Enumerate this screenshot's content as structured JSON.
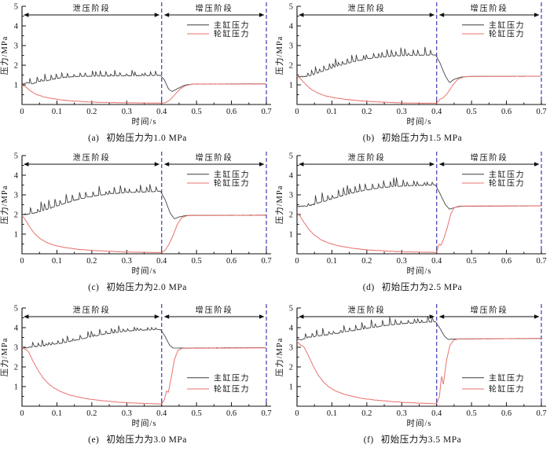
{
  "figure": {
    "background": "#ffffff"
  },
  "chart_common": {
    "type": "line",
    "xlabel": "时间/s",
    "ylabel": "压力/MPa",
    "xlim": [
      0,
      0.7
    ],
    "ylim": [
      0,
      5
    ],
    "x_ticks": [
      0,
      0.1,
      0.2,
      0.3,
      0.4,
      0.5,
      0.6,
      0.7
    ],
    "y_ticks": [
      1,
      2,
      3,
      4,
      5
    ],
    "grid": "off",
    "axis_color": "#111111",
    "divider_color": "#4a4ab8",
    "divider_positions": [
      0.4,
      0.7
    ],
    "phases": [
      {
        "label": "泄压阶段",
        "from": 0,
        "to": 0.4
      },
      {
        "label": "增压阶段",
        "from": 0.4,
        "to": 0.7
      }
    ],
    "legend": [
      {
        "name": "主缸压力",
        "color": "#3b3b3b"
      },
      {
        "name": "轮缸压力",
        "color": "#e8736e"
      }
    ]
  },
  "chart_data": [
    {
      "id": "a",
      "caption_label": "(a)",
      "caption_text": "初始压力为1.0 MPa",
      "initial_pressure_MPa": 1.0,
      "legend_pos": "top-right",
      "series": [
        {
          "name": "主缸压力",
          "spiky": true,
          "spike_amp": 0.33,
          "points": [
            [
              0,
              1.02
            ],
            [
              0.015,
              1.12
            ],
            [
              0.03,
              1.06
            ],
            [
              0.05,
              1.18
            ],
            [
              0.07,
              1.22
            ],
            [
              0.09,
              1.3
            ],
            [
              0.12,
              1.38
            ],
            [
              0.16,
              1.43
            ],
            [
              0.22,
              1.45
            ],
            [
              0.3,
              1.46
            ],
            [
              0.397,
              1.48
            ],
            [
              0.408,
              1.25
            ],
            [
              0.42,
              0.78
            ],
            [
              0.43,
              0.66
            ],
            [
              0.445,
              0.8
            ],
            [
              0.465,
              0.98
            ],
            [
              0.49,
              1.04
            ],
            [
              0.7,
              1.05
            ]
          ]
        },
        {
          "name": "轮缸压力",
          "spiky": false,
          "points": [
            [
              0,
              1.0
            ],
            [
              0.012,
              0.88
            ],
            [
              0.025,
              0.68
            ],
            [
              0.04,
              0.52
            ],
            [
              0.06,
              0.4
            ],
            [
              0.08,
              0.32
            ],
            [
              0.11,
              0.24
            ],
            [
              0.15,
              0.17
            ],
            [
              0.2,
              0.12
            ],
            [
              0.28,
              0.09
            ],
            [
              0.4,
              0.07
            ],
            [
              0.412,
              0.1
            ],
            [
              0.425,
              0.25
            ],
            [
              0.44,
              0.55
            ],
            [
              0.455,
              0.82
            ],
            [
              0.47,
              0.97
            ],
            [
              0.49,
              1.04
            ],
            [
              0.7,
              1.05
            ]
          ]
        }
      ]
    },
    {
      "id": "b",
      "caption_label": "(b)",
      "caption_text": "初始压力为1.5 MPa",
      "initial_pressure_MPa": 1.5,
      "legend_pos": "top-right",
      "series": [
        {
          "name": "主缸压力",
          "spiky": true,
          "spike_amp": 0.42,
          "points": [
            [
              0,
              1.42
            ],
            [
              0.03,
              1.43
            ],
            [
              0.05,
              1.55
            ],
            [
              0.07,
              1.68
            ],
            [
              0.09,
              1.8
            ],
            [
              0.12,
              1.98
            ],
            [
              0.15,
              2.12
            ],
            [
              0.18,
              2.25
            ],
            [
              0.22,
              2.38
            ],
            [
              0.27,
              2.46
            ],
            [
              0.32,
              2.5
            ],
            [
              0.397,
              2.53
            ],
            [
              0.41,
              2.1
            ],
            [
              0.425,
              1.45
            ],
            [
              0.437,
              1.12
            ],
            [
              0.45,
              1.28
            ],
            [
              0.47,
              1.4
            ],
            [
              0.5,
              1.43
            ],
            [
              0.7,
              1.44
            ]
          ]
        },
        {
          "name": "轮缸压力",
          "spiky": false,
          "points": [
            [
              0,
              1.45
            ],
            [
              0.012,
              1.28
            ],
            [
              0.025,
              1.02
            ],
            [
              0.04,
              0.78
            ],
            [
              0.06,
              0.58
            ],
            [
              0.08,
              0.45
            ],
            [
              0.11,
              0.33
            ],
            [
              0.15,
              0.24
            ],
            [
              0.2,
              0.16
            ],
            [
              0.3,
              0.08
            ],
            [
              0.4,
              0.06
            ],
            [
              0.41,
              0.28
            ],
            [
              0.418,
              0.33
            ],
            [
              0.43,
              0.55
            ],
            [
              0.445,
              0.95
            ],
            [
              0.46,
              1.28
            ],
            [
              0.48,
              1.41
            ],
            [
              0.5,
              1.43
            ],
            [
              0.7,
              1.44
            ]
          ]
        }
      ]
    },
    {
      "id": "c",
      "caption_label": "(c)",
      "caption_text": "初始压力为2.0 MPa",
      "initial_pressure_MPa": 2.0,
      "legend_pos": "top-right",
      "series": [
        {
          "name": "主缸压力",
          "spiky": true,
          "spike_amp": 0.5,
          "points": [
            [
              0,
              2.0
            ],
            [
              0.02,
              2.02
            ],
            [
              0.04,
              2.1
            ],
            [
              0.06,
              2.2
            ],
            [
              0.09,
              2.38
            ],
            [
              0.12,
              2.55
            ],
            [
              0.15,
              2.72
            ],
            [
              0.18,
              2.85
            ],
            [
              0.22,
              2.98
            ],
            [
              0.26,
              3.07
            ],
            [
              0.3,
              3.12
            ],
            [
              0.35,
              3.15
            ],
            [
              0.397,
              3.18
            ],
            [
              0.41,
              2.75
            ],
            [
              0.425,
              2.05
            ],
            [
              0.437,
              1.78
            ],
            [
              0.45,
              1.88
            ],
            [
              0.47,
              1.95
            ],
            [
              0.7,
              1.97
            ]
          ]
        },
        {
          "name": "轮缸压力",
          "spiky": false,
          "points": [
            [
              0,
              1.95
            ],
            [
              0.01,
              1.72
            ],
            [
              0.02,
              1.42
            ],
            [
              0.035,
              1.05
            ],
            [
              0.05,
              0.8
            ],
            [
              0.07,
              0.58
            ],
            [
              0.09,
              0.45
            ],
            [
              0.12,
              0.33
            ],
            [
              0.16,
              0.23
            ],
            [
              0.2,
              0.17
            ],
            [
              0.3,
              0.09
            ],
            [
              0.4,
              0.06
            ],
            [
              0.41,
              0.18
            ],
            [
              0.42,
              0.45
            ],
            [
              0.432,
              0.9
            ],
            [
              0.445,
              1.5
            ],
            [
              0.458,
              1.85
            ],
            [
              0.475,
              1.95
            ],
            [
              0.7,
              1.96
            ]
          ]
        }
      ]
    },
    {
      "id": "d",
      "caption_label": "(d)",
      "caption_text": "初始压力为2.5 MPa",
      "initial_pressure_MPa": 2.5,
      "legend_pos": "top-right",
      "series": [
        {
          "name": "主缸压力",
          "spiky": true,
          "spike_amp": 0.5,
          "points": [
            [
              0,
              2.42
            ],
            [
              0.03,
              2.43
            ],
            [
              0.05,
              2.52
            ],
            [
              0.07,
              2.63
            ],
            [
              0.1,
              2.8
            ],
            [
              0.13,
              2.96
            ],
            [
              0.16,
              3.1
            ],
            [
              0.2,
              3.25
            ],
            [
              0.24,
              3.36
            ],
            [
              0.28,
              3.43
            ],
            [
              0.33,
              3.47
            ],
            [
              0.397,
              3.5
            ],
            [
              0.41,
              3.05
            ],
            [
              0.425,
              2.5
            ],
            [
              0.437,
              2.27
            ],
            [
              0.45,
              2.35
            ],
            [
              0.47,
              2.42
            ],
            [
              0.7,
              2.44
            ]
          ]
        },
        {
          "name": "轮缸压力",
          "spiky": false,
          "points": [
            [
              0,
              2.1
            ],
            [
              0.01,
              1.88
            ],
            [
              0.02,
              1.6
            ],
            [
              0.035,
              1.22
            ],
            [
              0.05,
              0.95
            ],
            [
              0.07,
              0.7
            ],
            [
              0.09,
              0.55
            ],
            [
              0.12,
              0.4
            ],
            [
              0.16,
              0.28
            ],
            [
              0.2,
              0.2
            ],
            [
              0.3,
              0.1
            ],
            [
              0.4,
              0.07
            ],
            [
              0.407,
              0.5
            ],
            [
              0.412,
              0.42
            ],
            [
              0.42,
              0.75
            ],
            [
              0.43,
              1.3
            ],
            [
              0.44,
              2.0
            ],
            [
              0.45,
              2.35
            ],
            [
              0.465,
              2.43
            ],
            [
              0.7,
              2.44
            ]
          ]
        }
      ]
    },
    {
      "id": "e",
      "caption_label": "(e)",
      "caption_text": "初始压力为3.0 MPa",
      "initial_pressure_MPa": 3.0,
      "legend_pos": "mid-right",
      "series": [
        {
          "name": "主缸压力",
          "spiky": true,
          "spike_amp": 0.32,
          "points": [
            [
              0,
              2.95
            ],
            [
              0.02,
              3.0
            ],
            [
              0.05,
              3.06
            ],
            [
              0.08,
              3.12
            ],
            [
              0.11,
              3.2
            ],
            [
              0.15,
              3.35
            ],
            [
              0.19,
              3.5
            ],
            [
              0.23,
              3.65
            ],
            [
              0.27,
              3.76
            ],
            [
              0.31,
              3.84
            ],
            [
              0.35,
              3.88
            ],
            [
              0.397,
              3.9
            ],
            [
              0.41,
              3.55
            ],
            [
              0.423,
              3.1
            ],
            [
              0.433,
              2.96
            ],
            [
              0.45,
              2.96
            ],
            [
              0.7,
              2.98
            ]
          ]
        },
        {
          "name": "轮缸压力",
          "spiky": false,
          "points": [
            [
              0,
              3.0
            ],
            [
              0.008,
              2.92
            ],
            [
              0.018,
              2.8
            ],
            [
              0.03,
              2.35
            ],
            [
              0.045,
              1.85
            ],
            [
              0.06,
              1.45
            ],
            [
              0.075,
              1.15
            ],
            [
              0.09,
              0.95
            ],
            [
              0.11,
              0.75
            ],
            [
              0.14,
              0.55
            ],
            [
              0.18,
              0.4
            ],
            [
              0.22,
              0.3
            ],
            [
              0.28,
              0.2
            ],
            [
              0.35,
              0.14
            ],
            [
              0.4,
              0.11
            ],
            [
              0.408,
              0.35
            ],
            [
              0.414,
              0.78
            ],
            [
              0.419,
              0.7
            ],
            [
              0.428,
              1.5
            ],
            [
              0.437,
              2.4
            ],
            [
              0.447,
              2.85
            ],
            [
              0.46,
              2.95
            ],
            [
              0.7,
              2.97
            ]
          ]
        }
      ]
    },
    {
      "id": "f",
      "caption_label": "(f)",
      "caption_text": "初始压力为3.5 MPa",
      "initial_pressure_MPa": 3.5,
      "legend_pos": "mid-right",
      "series": [
        {
          "name": "主缸压力",
          "spiky": true,
          "spike_amp": 0.42,
          "points": [
            [
              0,
              3.42
            ],
            [
              0.015,
              3.38
            ],
            [
              0.03,
              3.5
            ],
            [
              0.06,
              3.58
            ],
            [
              0.09,
              3.65
            ],
            [
              0.12,
              3.73
            ],
            [
              0.16,
              3.85
            ],
            [
              0.2,
              3.96
            ],
            [
              0.25,
              4.1
            ],
            [
              0.3,
              4.2
            ],
            [
              0.35,
              4.26
            ],
            [
              0.397,
              4.3
            ],
            [
              0.41,
              3.95
            ],
            [
              0.423,
              3.55
            ],
            [
              0.433,
              3.4
            ],
            [
              0.45,
              3.42
            ],
            [
              0.7,
              3.45
            ]
          ]
        },
        {
          "name": "轮缸压力",
          "spiky": false,
          "points": [
            [
              0,
              3.3
            ],
            [
              0.01,
              3.12
            ],
            [
              0.02,
              3.02
            ],
            [
              0.032,
              2.6
            ],
            [
              0.045,
              2.1
            ],
            [
              0.06,
              1.6
            ],
            [
              0.075,
              1.25
            ],
            [
              0.09,
              1.0
            ],
            [
              0.11,
              0.78
            ],
            [
              0.14,
              0.58
            ],
            [
              0.18,
              0.42
            ],
            [
              0.22,
              0.32
            ],
            [
              0.3,
              0.2
            ],
            [
              0.4,
              0.12
            ],
            [
              0.408,
              0.5
            ],
            [
              0.414,
              1.55
            ],
            [
              0.419,
              1.1
            ],
            [
              0.428,
              2.3
            ],
            [
              0.438,
              3.1
            ],
            [
              0.45,
              3.38
            ],
            [
              0.465,
              3.43
            ],
            [
              0.7,
              3.45
            ]
          ]
        }
      ]
    }
  ]
}
